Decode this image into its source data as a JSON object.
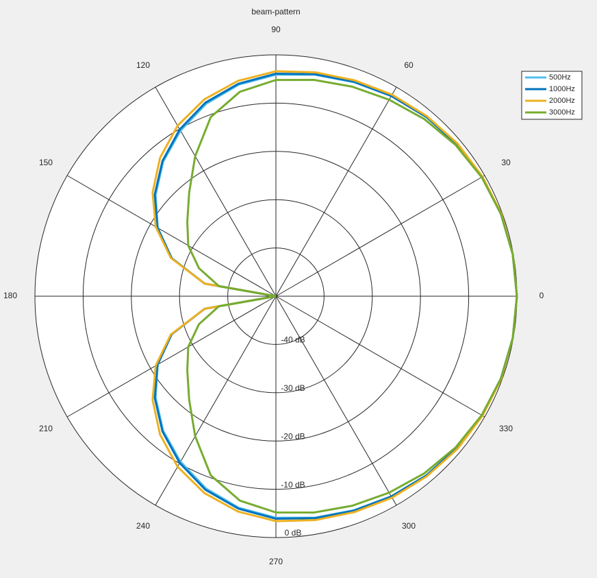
{
  "chart_data": {
    "type": "polar",
    "title": "beam-pattern",
    "theta": [
      0,
      10,
      20,
      30,
      40,
      50,
      60,
      70,
      80,
      90,
      100,
      110,
      120,
      130,
      140,
      150,
      160,
      170,
      180,
      190,
      200,
      210,
      220,
      230,
      240,
      250,
      260,
      270,
      280,
      290,
      300,
      310,
      320,
      330,
      340,
      350,
      360
    ],
    "rlim": [
      -50,
      0
    ],
    "rticks": [
      {
        "value": -40,
        "label": "-40 dB"
      },
      {
        "value": -30,
        "label": "-30 dB"
      },
      {
        "value": -20,
        "label": "-20 dB"
      },
      {
        "value": -10,
        "label": "-10 dB"
      },
      {
        "value": 0,
        "label": "0 dB"
      }
    ],
    "thetaticks": [
      0,
      30,
      60,
      90,
      120,
      150,
      180,
      210,
      240,
      270,
      300,
      330
    ],
    "grid": true,
    "legend": "upper right",
    "series": [
      {
        "name": "500Hz",
        "color": "#4dbeee",
        "values": [
          0,
          -0.1,
          -0.3,
          -0.6,
          -1.0,
          -1.5,
          -2.1,
          -2.8,
          -3.4,
          -4.1,
          -5.5,
          -7.6,
          -10.4,
          -13.6,
          -17.4,
          -21.7,
          -27,
          -35,
          -50,
          -35,
          -27,
          -21.7,
          -17.4,
          -13.6,
          -10.4,
          -7.6,
          -5.5,
          -4.1,
          -3.4,
          -2.8,
          -2.1,
          -1.5,
          -1.0,
          -0.6,
          -0.3,
          -0.1,
          0
        ]
      },
      {
        "name": "1000Hz",
        "color": "#0072bd",
        "values": [
          0,
          -0.1,
          -0.3,
          -0.6,
          -1.0,
          -1.5,
          -2.1,
          -2.7,
          -3.3,
          -3.9,
          -5.3,
          -7.3,
          -10.1,
          -13.4,
          -17.2,
          -21.6,
          -27,
          -35,
          -50,
          -35,
          -27,
          -21.6,
          -17.2,
          -13.4,
          -10.1,
          -7.3,
          -5.3,
          -3.9,
          -3.3,
          -2.7,
          -2.1,
          -1.5,
          -1.0,
          -0.6,
          -0.3,
          -0.1,
          0
        ]
      },
      {
        "name": "2000Hz",
        "color": "#edb120",
        "values": [
          0,
          -0.1,
          -0.2,
          -0.5,
          -0.8,
          -1.3,
          -1.8,
          -2.4,
          -2.9,
          -3.4,
          -4.7,
          -6.6,
          -9.2,
          -12.6,
          -16.6,
          -21.2,
          -26.8,
          -35,
          -50,
          -35,
          -26.8,
          -21.2,
          -16.6,
          -12.6,
          -9.2,
          -6.6,
          -4.7,
          -3.4,
          -2.9,
          -2.4,
          -1.8,
          -1.3,
          -0.8,
          -0.5,
          -0.2,
          -0.1,
          0
        ]
      },
      {
        "name": "3000Hz",
        "color": "#77ac30",
        "values": [
          0,
          -0.1,
          -0.3,
          -0.7,
          -1.3,
          -2.1,
          -3.0,
          -3.8,
          -4.5,
          -5.2,
          -7.0,
          -10.5,
          -16.5,
          -22,
          -26,
          -29,
          -33,
          -38,
          -50,
          -38,
          -33,
          -29,
          -26,
          -22,
          -16.5,
          -10.5,
          -7.0,
          -5.2,
          -4.5,
          -3.8,
          -3.0,
          -2.1,
          -1.3,
          -0.7,
          -0.3,
          -0.1,
          0
        ]
      }
    ]
  }
}
